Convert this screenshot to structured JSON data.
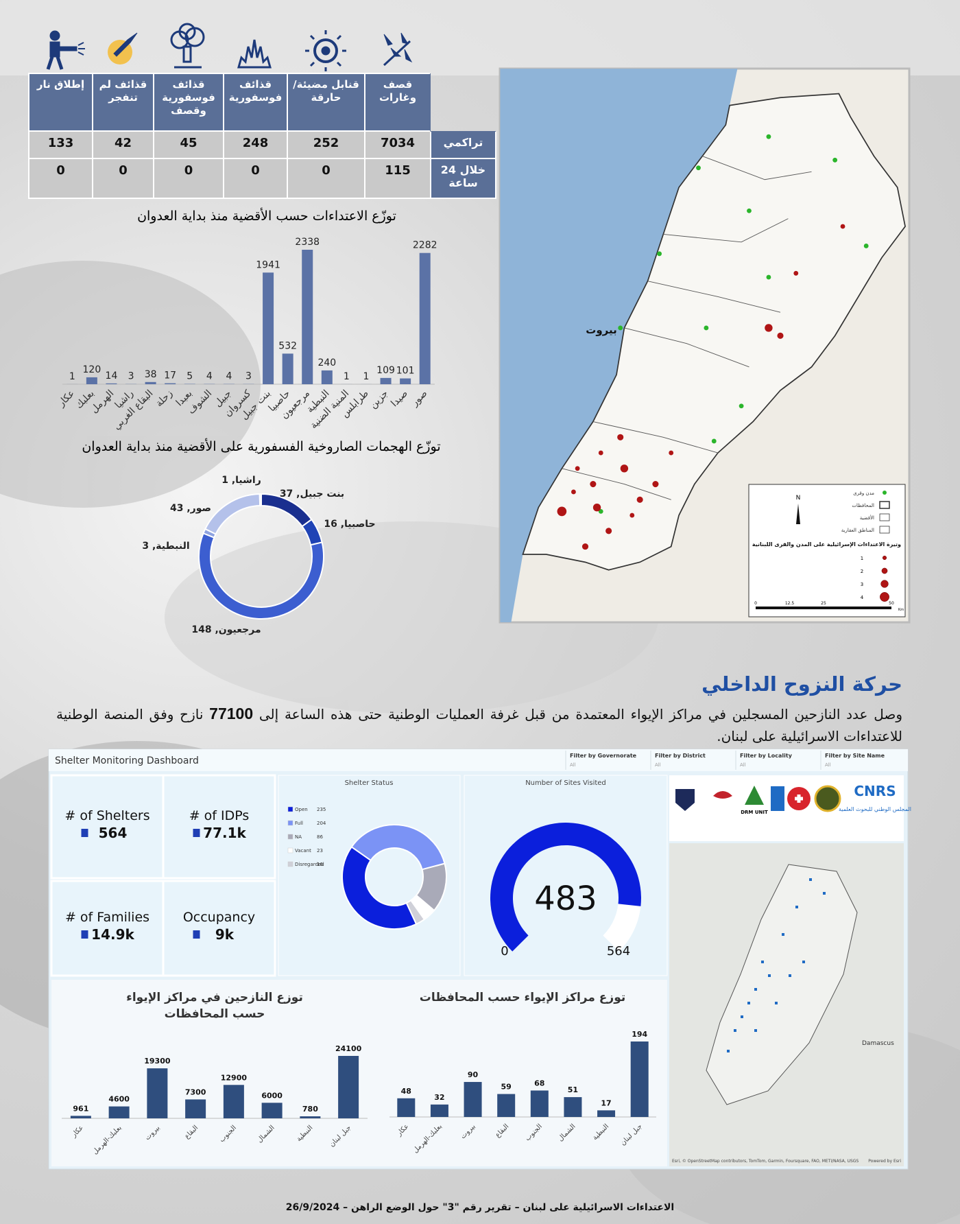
{
  "table": {
    "columns": [
      "قصف وغارات",
      "قنابل مضيئة/حارقة",
      "قذائف فوسفورية",
      "قذائف فوسفورية وقصف",
      "قذائف لم تنفجر",
      "إطلاق نار"
    ],
    "rows": [
      {
        "label": "تراكمي",
        "values": [
          7034,
          252,
          248,
          45,
          42,
          133
        ]
      },
      {
        "label": "خلال 24 ساعة",
        "values": [
          115,
          0,
          0,
          0,
          0,
          0
        ]
      }
    ]
  },
  "chart_data": [
    {
      "type": "bar",
      "title": "توزّع الاعتداءات حسب الأقضية منذ بداية العدوان",
      "categories": [
        "عكار",
        "بعلبك",
        "الهرمل",
        "راشيا",
        "البقاع الغربي",
        "زحلة",
        "بعبدا",
        "الشوف",
        "جبيل",
        "كسروان",
        "بنت جبيل",
        "حاصبيا",
        "مرجعيون",
        "النبطية",
        "المنية الضنية",
        "طرابلس",
        "جزين",
        "صيدا",
        "صور"
      ],
      "values": [
        1,
        120,
        14,
        3,
        38,
        17,
        5,
        4,
        4,
        3,
        1941,
        532,
        2338,
        240,
        1,
        1,
        109,
        101,
        2282
      ],
      "color": "#5b72a6"
    },
    {
      "type": "donut",
      "title": "توزّع الهجمات الصاروخية الفسفورية على الأقضية منذ بداية العدوان",
      "categories": [
        "بنت جبيل",
        "حاصبيا",
        "مرجعيون",
        "النبطية",
        "صور",
        "راشيا"
      ],
      "values": [
        37,
        16,
        148,
        3,
        43,
        1
      ],
      "value_labels": [
        "بنت جبيل, 37",
        "حاصبيا, 16",
        "مرجعيون, 148",
        "النبطية, 3",
        "صور, 43",
        "راشيا, 1"
      ],
      "colors": [
        "#1a2f8f",
        "#1f43b5",
        "#3c5ed0",
        "#8fa3e0",
        "#b4c1ea",
        "#d6ddf3"
      ]
    },
    {
      "type": "donut",
      "title": "Shelter Status",
      "categories": [
        "Open",
        "Full",
        "NA",
        "Vacant",
        "Disregarded"
      ],
      "values": [
        235,
        204,
        86,
        23,
        16
      ],
      "colors": [
        "#0b1fdc",
        "#7b93f5",
        "#a9aab8",
        "#ffffff",
        "#cfd0d8"
      ]
    },
    {
      "type": "gauge",
      "title": "Number of Sites Visited",
      "values": [
        483
      ],
      "ylim": [
        0,
        564
      ],
      "color": "#0b1fdc"
    },
    {
      "type": "bar",
      "title": "توزع النازحين في مراكز الإيواء حسب المحافظات",
      "categories": [
        "عكار",
        "بعلبك-الهرمل",
        "بيروت",
        "البقاع",
        "الجنوب",
        "الشمال",
        "النبطية",
        "جبل لبنان"
      ],
      "values": [
        961,
        4600,
        19300,
        7300,
        12900,
        6000,
        780,
        24100
      ],
      "color": "#2f4e7e"
    },
    {
      "type": "bar",
      "title": "توزع مراكز الإيواء حسب المحافظات",
      "categories": [
        "عكار",
        "بعلبك-الهرمل",
        "بيروت",
        "البقاع",
        "الجنوب",
        "الشمال",
        "النبطية",
        "جبل لبنان"
      ],
      "values": [
        48,
        32,
        90,
        59,
        68,
        51,
        17,
        194
      ],
      "color": "#2f4e7e"
    }
  ],
  "map": {
    "city": "بيروت",
    "legend_items": [
      "مدن وقرى",
      "المحافظات",
      "الأقضية",
      "المناطق العقارية"
    ],
    "legend_title": "وتيرة الاعتداءات الإسرائيلية على المدن والقرى اللبنانية",
    "levels": [
      1,
      2,
      3,
      4
    ],
    "north": "N",
    "scale": [
      0,
      12.5,
      25,
      50
    ],
    "scale_unit": "Km"
  },
  "section": {
    "heading": "حركة النزوح الداخلي",
    "before": "وصل عدد النازحين المسجلين في مراكز الإيواء المعتمدة من قبل غرفة العمليات الوطنية حتى هذه الساعة إلى",
    "number": 77100,
    "after": "نازح وفق المنصة الوطنية للاعتداءات الاسرائيلية على لبنان."
  },
  "dashboard": {
    "title": "Shelter Monitoring Dashboard",
    "filters": [
      {
        "label": "Filter by Governorate",
        "value": "All"
      },
      {
        "label": "Filter by District",
        "value": "All"
      },
      {
        "label": "Filter by Locality",
        "value": "All"
      },
      {
        "label": "Filter by Site Name",
        "value": "All"
      }
    ],
    "kpis": [
      {
        "label": "# of Shelters",
        "value": "564"
      },
      {
        "label": "# of IDPs",
        "value": "77.1k"
      },
      {
        "label": "# of Families",
        "value": "14.9k"
      },
      {
        "label": "Occupancy",
        "value": "9k"
      }
    ],
    "logos": {
      "drm": "DRM UNIT",
      "cnrs": "CNRS",
      "cnrs_name": "المجلس الوطني للبحوث العلمية"
    },
    "map": {
      "city": "Damascus",
      "credits": "Esri, © OpenStreetMap contributors, TomTom, Garmin, Foursquare, FAO, METI/NASA, USGS",
      "powered": "Powered by Esri"
    }
  },
  "footer": "الاعتداءات الاسرائيلية على لبنان – تقرير رقم \"3\" حول الوضع الراهن – 26/9/2024"
}
